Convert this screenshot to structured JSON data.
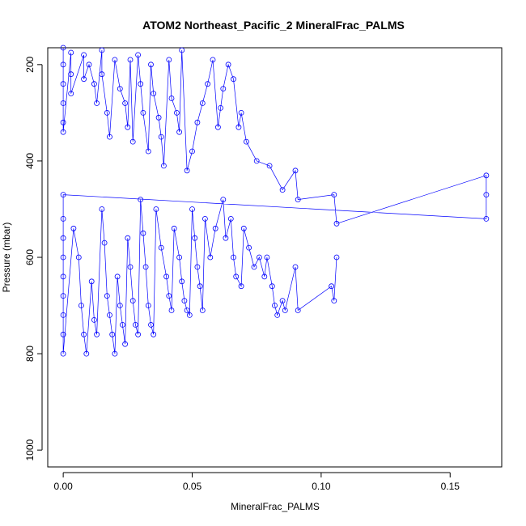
{
  "chart_data": {
    "type": "scatter",
    "title": "ATOM2 Northeast_Pacific_2 MineralFrac_PALMS",
    "xlabel": "MineralFrac_PALMS",
    "ylabel": "Pressure (mbar)",
    "xlim": [
      -0.006,
      0.17
    ],
    "ylim": [
      1035,
      165
    ],
    "y_reversed": true,
    "x_ticks": [
      0.0,
      0.05,
      0.1,
      0.15
    ],
    "x_tick_labels": [
      "0.00",
      "0.05",
      "0.10",
      "0.15"
    ],
    "y_ticks": [
      200,
      400,
      600,
      800,
      1000
    ],
    "y_tick_labels": [
      "200",
      "400",
      "600",
      "800",
      "1000"
    ],
    "grid": false,
    "legend": "none",
    "marker": "open-circle",
    "series_color": "#0000ff",
    "series": [
      {
        "points": [
          [
            0.0,
            165
          ],
          [
            0.0,
            200
          ],
          [
            0.0,
            240
          ],
          [
            0.0,
            280
          ],
          [
            0.0,
            320
          ],
          [
            0.0,
            340
          ],
          [
            0.003,
            175
          ],
          [
            0.003,
            220
          ],
          [
            0.003,
            260
          ],
          [
            0.008,
            180
          ],
          [
            0.008,
            230
          ],
          [
            0.01,
            200
          ],
          [
            0.012,
            240
          ],
          [
            0.013,
            280
          ],
          [
            0.015,
            170
          ],
          [
            0.015,
            220
          ],
          [
            0.017,
            300
          ],
          [
            0.018,
            350
          ],
          [
            0.02,
            190
          ],
          [
            0.022,
            250
          ],
          [
            0.024,
            280
          ],
          [
            0.025,
            330
          ],
          [
            0.026,
            190
          ],
          [
            0.027,
            360
          ],
          [
            0.029,
            180
          ],
          [
            0.03,
            240
          ],
          [
            0.031,
            300
          ],
          [
            0.033,
            380
          ],
          [
            0.034,
            200
          ],
          [
            0.035,
            260
          ],
          [
            0.037,
            310
          ],
          [
            0.038,
            350
          ],
          [
            0.039,
            410
          ],
          [
            0.041,
            190
          ],
          [
            0.042,
            270
          ],
          [
            0.044,
            300
          ],
          [
            0.045,
            340
          ],
          [
            0.046,
            170
          ],
          [
            0.048,
            420
          ],
          [
            0.05,
            380
          ],
          [
            0.052,
            320
          ],
          [
            0.054,
            280
          ],
          [
            0.056,
            240
          ],
          [
            0.058,
            190
          ],
          [
            0.06,
            330
          ],
          [
            0.061,
            290
          ],
          [
            0.062,
            250
          ],
          [
            0.064,
            200
          ],
          [
            0.066,
            230
          ],
          [
            0.068,
            330
          ],
          [
            0.069,
            300
          ],
          [
            0.071,
            360
          ],
          [
            0.075,
            400
          ],
          [
            0.08,
            410
          ],
          [
            0.085,
            460
          ],
          [
            0.09,
            420
          ],
          [
            0.091,
            480
          ],
          [
            0.105,
            470
          ],
          [
            0.106,
            530
          ],
          [
            0.164,
            430
          ],
          [
            0.164,
            470
          ],
          [
            0.164,
            520
          ],
          [
            0.0,
            470
          ],
          [
            0.0,
            520
          ],
          [
            0.0,
            560
          ],
          [
            0.0,
            600
          ],
          [
            0.0,
            640
          ],
          [
            0.0,
            680
          ],
          [
            0.0,
            720
          ],
          [
            0.0,
            760
          ],
          [
            0.0,
            800
          ],
          [
            0.004,
            540
          ],
          [
            0.006,
            600
          ],
          [
            0.007,
            700
          ],
          [
            0.008,
            760
          ],
          [
            0.009,
            800
          ],
          [
            0.011,
            650
          ],
          [
            0.012,
            730
          ],
          [
            0.013,
            760
          ],
          [
            0.015,
            500
          ],
          [
            0.016,
            570
          ],
          [
            0.017,
            680
          ],
          [
            0.018,
            720
          ],
          [
            0.019,
            760
          ],
          [
            0.02,
            800
          ],
          [
            0.021,
            640
          ],
          [
            0.022,
            700
          ],
          [
            0.023,
            740
          ],
          [
            0.024,
            780
          ],
          [
            0.025,
            560
          ],
          [
            0.026,
            620
          ],
          [
            0.027,
            690
          ],
          [
            0.028,
            740
          ],
          [
            0.029,
            760
          ],
          [
            0.03,
            480
          ],
          [
            0.031,
            550
          ],
          [
            0.032,
            620
          ],
          [
            0.033,
            700
          ],
          [
            0.034,
            740
          ],
          [
            0.035,
            760
          ],
          [
            0.036,
            500
          ],
          [
            0.038,
            580
          ],
          [
            0.04,
            640
          ],
          [
            0.041,
            680
          ],
          [
            0.042,
            710
          ],
          [
            0.043,
            540
          ],
          [
            0.045,
            600
          ],
          [
            0.046,
            650
          ],
          [
            0.047,
            690
          ],
          [
            0.048,
            710
          ],
          [
            0.049,
            720
          ],
          [
            0.05,
            500
          ],
          [
            0.051,
            560
          ],
          [
            0.052,
            620
          ],
          [
            0.053,
            660
          ],
          [
            0.054,
            710
          ],
          [
            0.055,
            520
          ],
          [
            0.057,
            600
          ],
          [
            0.059,
            540
          ],
          [
            0.062,
            480
          ],
          [
            0.063,
            560
          ],
          [
            0.065,
            520
          ],
          [
            0.066,
            600
          ],
          [
            0.067,
            640
          ],
          [
            0.069,
            660
          ],
          [
            0.07,
            540
          ],
          [
            0.072,
            580
          ],
          [
            0.074,
            620
          ],
          [
            0.076,
            600
          ],
          [
            0.078,
            640
          ],
          [
            0.079,
            600
          ],
          [
            0.081,
            660
          ],
          [
            0.082,
            700
          ],
          [
            0.083,
            720
          ],
          [
            0.085,
            690
          ],
          [
            0.086,
            710
          ],
          [
            0.09,
            620
          ],
          [
            0.091,
            710
          ],
          [
            0.104,
            660
          ],
          [
            0.105,
            690
          ],
          [
            0.106,
            600
          ]
        ]
      }
    ]
  }
}
